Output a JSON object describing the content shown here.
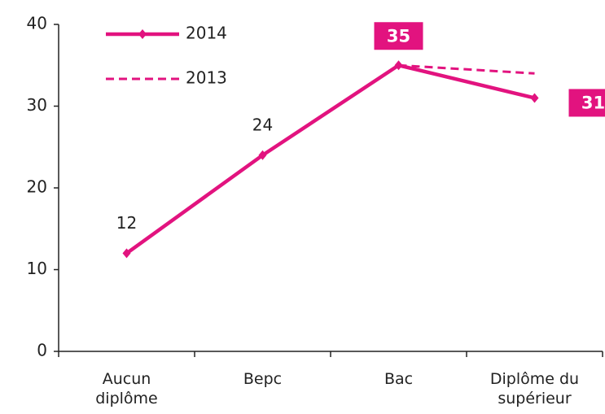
{
  "chart_data": {
    "type": "line",
    "categories": [
      "Aucun diplôme",
      "Bepc",
      "Bac",
      "Diplôme du supérieur"
    ],
    "series": [
      {
        "name": "2014",
        "color": "#e2137f",
        "style": "solid",
        "values": [
          12,
          24,
          35,
          31
        ]
      },
      {
        "name": "2013",
        "color": "#e2137f",
        "style": "dashed",
        "values": [
          null,
          null,
          35,
          34
        ]
      }
    ],
    "ylim": [
      0,
      40
    ],
    "yticks": [
      0,
      10,
      20,
      30,
      40
    ],
    "grid": false,
    "legend": "top-left"
  }
}
